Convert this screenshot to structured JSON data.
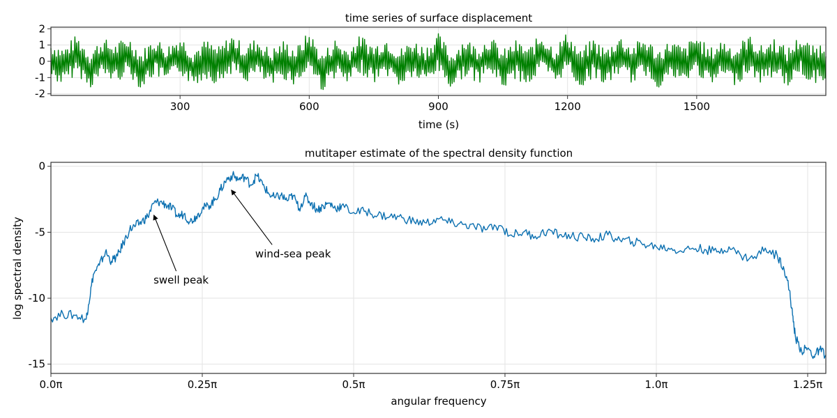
{
  "chart_data": [
    {
      "type": "line",
      "title": "time series of surface displacement",
      "xlabel": "time (s)",
      "ylabel": "",
      "xlim": [
        0,
        1800
      ],
      "ylim": [
        -2.1,
        2.1
      ],
      "x_ticks": [
        300,
        600,
        900,
        1200,
        1500
      ],
      "x_tick_labels": [
        "300",
        "600",
        "900",
        "1200",
        "1500"
      ],
      "y_ticks": [
        -2,
        -1,
        0,
        1,
        2
      ],
      "y_tick_labels": [
        "-2",
        "-1",
        "0",
        "1",
        "2"
      ],
      "grid": true,
      "series": [
        {
          "color": "#008000",
          "x": [
            0,
            30,
            60,
            90,
            120,
            150,
            180,
            210,
            240,
            270,
            300,
            330,
            360,
            390,
            420,
            450,
            480,
            510,
            540,
            570,
            600,
            630,
            660,
            690,
            720,
            750,
            780,
            810,
            840,
            870,
            900,
            930,
            960,
            990,
            1020,
            1050,
            1080,
            1110,
            1140,
            1170,
            1200,
            1230,
            1260,
            1290,
            1320,
            1350,
            1380,
            1410,
            1440,
            1470,
            1500,
            1530,
            1560,
            1590,
            1620,
            1650,
            1680,
            1710,
            1740,
            1770,
            1800
          ],
          "y": [
            0.2,
            -0.9,
            1.3,
            -1.4,
            0.7,
            -0.3,
            1.1,
            -1.6,
            0.9,
            -0.6,
            1.2,
            -1.1,
            0.4,
            -0.8,
            1.4,
            -0.5,
            0.8,
            -1.3,
            0.3,
            -0.9,
            1.9,
            -1.9,
            0.6,
            -1.0,
            1.3,
            -0.4,
            0.9,
            -1.2,
            0.5,
            -0.7,
            1.5,
            -1.7,
            0.8,
            -0.6,
            1.1,
            -1.4,
            0.3,
            -0.9,
            1.6,
            -0.8,
            1.8,
            -1.5,
            0.7,
            -1.1,
            1.2,
            -0.5,
            0.9,
            -1.3,
            0.4,
            -0.8,
            1.4,
            -1.2,
            0.6,
            -0.9,
            1.3,
            -0.6,
            0.8,
            -1.1,
            1.2,
            -0.7,
            0.3
          ]
        }
      ]
    },
    {
      "type": "line",
      "title": "mutitaper estimate of the spectral density function",
      "xlabel": "angular frequency",
      "ylabel": "log spectral density",
      "xlim": [
        0,
        1.28
      ],
      "ylim": [
        -15.7,
        0.3
      ],
      "x_ticks": [
        0,
        0.25,
        0.5,
        0.75,
        1.0,
        1.25
      ],
      "x_tick_labels": [
        "0.0π",
        "0.25π",
        "0.5π",
        "0.75π",
        "1.0π",
        "1.25π"
      ],
      "y_ticks": [
        0,
        -5,
        -10,
        -15
      ],
      "y_tick_labels": [
        "0",
        "-5",
        "-10",
        "-15"
      ],
      "grid": true,
      "x_unit_note": "x values in units of π",
      "series": [
        {
          "color": "#0a6fb0",
          "x": [
            0,
            0.02,
            0.04,
            0.058,
            0.062,
            0.07,
            0.08,
            0.09,
            0.1,
            0.11,
            0.12,
            0.13,
            0.14,
            0.15,
            0.16,
            0.17,
            0.18,
            0.19,
            0.2,
            0.21,
            0.22,
            0.23,
            0.24,
            0.25,
            0.26,
            0.27,
            0.28,
            0.29,
            0.3,
            0.31,
            0.32,
            0.33,
            0.34,
            0.35,
            0.36,
            0.37,
            0.38,
            0.39,
            0.4,
            0.41,
            0.42,
            0.43,
            0.44,
            0.45,
            0.46,
            0.47,
            0.48,
            0.5,
            0.52,
            0.54,
            0.56,
            0.58,
            0.6,
            0.62,
            0.64,
            0.66,
            0.68,
            0.7,
            0.72,
            0.74,
            0.76,
            0.78,
            0.8,
            0.82,
            0.84,
            0.86,
            0.88,
            0.9,
            0.92,
            0.94,
            0.96,
            0.98,
            1.0,
            1.02,
            1.04,
            1.06,
            1.08,
            1.1,
            1.12,
            1.14,
            1.16,
            1.18,
            1.2,
            1.21,
            1.22,
            1.225,
            1.23,
            1.24,
            1.25,
            1.26,
            1.27,
            1.28
          ],
          "y": [
            -11.5,
            -11.2,
            -11.3,
            -11.6,
            -10.5,
            -8.2,
            -7.5,
            -6.5,
            -7.2,
            -6.8,
            -5.8,
            -4.8,
            -4.5,
            -4.2,
            -3.8,
            -2.8,
            -2.7,
            -2.9,
            -3.2,
            -3.8,
            -3.6,
            -4.2,
            -3.8,
            -3.2,
            -3.0,
            -2.6,
            -1.8,
            -1.0,
            -0.7,
            -1.0,
            -0.8,
            -1.4,
            -0.7,
            -1.4,
            -2.1,
            -2.4,
            -2.2,
            -2.6,
            -2.2,
            -3.2,
            -2.3,
            -2.8,
            -3.3,
            -3.0,
            -2.8,
            -3.2,
            -3.0,
            -3.5,
            -3.4,
            -3.7,
            -3.8,
            -3.9,
            -4.2,
            -4.3,
            -4.0,
            -4.3,
            -4.4,
            -4.6,
            -4.8,
            -4.5,
            -5.2,
            -5.0,
            -5.3,
            -4.9,
            -5.2,
            -5.3,
            -5.4,
            -5.5,
            -5.2,
            -5.6,
            -5.7,
            -5.9,
            -6.1,
            -6.2,
            -6.4,
            -6.2,
            -6.3,
            -6.5,
            -6.1,
            -6.8,
            -7.0,
            -6.2,
            -6.8,
            -7.6,
            -9.4,
            -11.3,
            -13.0,
            -14.0,
            -13.8,
            -14.4,
            -13.9,
            -14.3
          ]
        }
      ],
      "annotations": [
        {
          "text": "swell peak",
          "x": 0.17,
          "y": -3.7,
          "text_x": 0.215,
          "text_y": -8.9
        },
        {
          "text": "wind-sea peak",
          "x": 0.298,
          "y": -1.8,
          "text_x": 0.4,
          "text_y": -6.9
        }
      ]
    }
  ]
}
